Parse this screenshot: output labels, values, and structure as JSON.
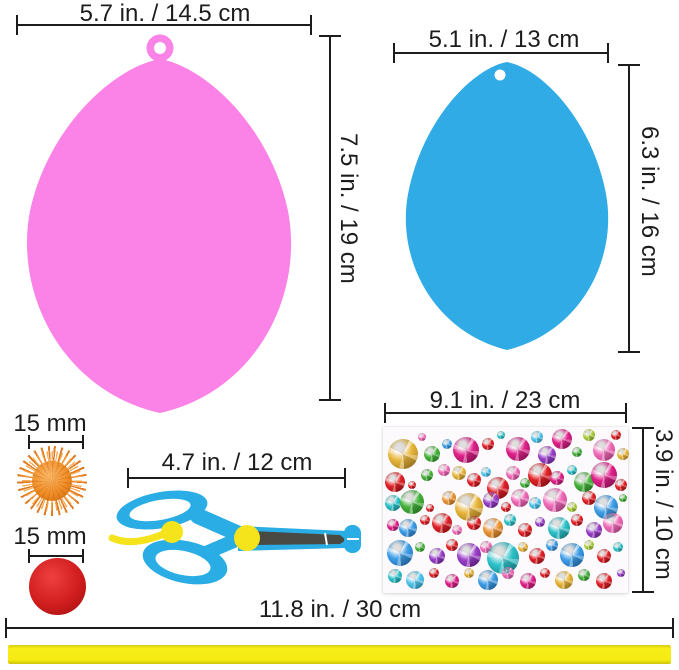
{
  "colors": {
    "dimension_line": "#1c1c1c",
    "pink_egg": "#fb82e6",
    "blue_egg": "#31abe6",
    "scissors_blue": "#29ade4",
    "scissors_yellow": "#f5e41c",
    "blade_gray": "#4a4a45",
    "ribbon_yellow": "#f5eb14",
    "pompom_orange": "#ef8c25",
    "pompom_red": "#d01d1d"
  },
  "pink_egg": {
    "width_label": "5.7 in. / 14.5 cm",
    "height_label": "7.5 in. / 19 cm"
  },
  "blue_egg": {
    "width_label": "5.1 in. / 13 cm",
    "height_label": "6.3 in. / 16 cm"
  },
  "orange_pompom": {
    "size_label": "15 mm"
  },
  "red_pompom": {
    "size_label": "15 mm"
  },
  "scissors": {
    "length_label": "4.7 in. / 12 cm"
  },
  "sticker_sheet": {
    "width_label": "9.1 in. / 23 cm",
    "height_label": "3.9 in. / 10 cm",
    "palette": {
      "red": [
        "#e02127",
        "#8f0d12"
      ],
      "magenta": [
        "#e0218a",
        "#8f1158"
      ],
      "pink": [
        "#f06cb8",
        "#b03a80"
      ],
      "gold": [
        "#e8b63a",
        "#a1761a"
      ],
      "orange": [
        "#eb9434",
        "#a65e14"
      ],
      "green": [
        "#46b13c",
        "#1f7a1a"
      ],
      "lime": [
        "#aace3a",
        "#6f8f18"
      ],
      "teal": [
        "#2ec2c9",
        "#127f86"
      ],
      "blue": [
        "#3e9fe6",
        "#1a5fa8"
      ],
      "cyan": [
        "#52c3ea",
        "#1f85ad"
      ],
      "purple": [
        "#9a3fc9",
        "#5e1a85"
      ]
    },
    "gems": [
      [
        8,
        16,
        15,
        "gold"
      ],
      [
        16,
        6,
        4,
        "pink"
      ],
      [
        20,
        16,
        8,
        "green"
      ],
      [
        26,
        10,
        5,
        "blue"
      ],
      [
        34,
        14,
        13,
        "magenta"
      ],
      [
        43,
        10,
        6,
        "red"
      ],
      [
        48,
        5,
        4,
        "teal"
      ],
      [
        55,
        13,
        12,
        "magenta"
      ],
      [
        63,
        6,
        6,
        "cyan"
      ],
      [
        67,
        17,
        9,
        "purple"
      ],
      [
        73,
        7,
        10,
        "magenta"
      ],
      [
        79,
        15,
        5,
        "green"
      ],
      [
        84,
        5,
        6,
        "lime"
      ],
      [
        90,
        14,
        11,
        "pink"
      ],
      [
        95,
        5,
        5,
        "red"
      ],
      [
        98,
        16,
        6,
        "gold"
      ],
      [
        5,
        33,
        10,
        "red"
      ],
      [
        12,
        35,
        4,
        "red"
      ],
      [
        18,
        29,
        6,
        "green"
      ],
      [
        25,
        26,
        6,
        "pink"
      ],
      [
        31,
        28,
        7,
        "gold"
      ],
      [
        37,
        32,
        7,
        "red"
      ],
      [
        42,
        27,
        5,
        "cyan"
      ],
      [
        47,
        37,
        11,
        "red"
      ],
      [
        53,
        28,
        7,
        "pink"
      ],
      [
        58,
        34,
        5,
        "green"
      ],
      [
        64,
        29,
        12,
        "red"
      ],
      [
        71,
        31,
        7,
        "magenta"
      ],
      [
        77,
        26,
        5,
        "teal"
      ],
      [
        82,
        33,
        10,
        "green"
      ],
      [
        90,
        29,
        13,
        "magenta"
      ],
      [
        97,
        35,
        6,
        "red"
      ],
      [
        4,
        46,
        8,
        "teal"
      ],
      [
        12,
        45,
        12,
        "green"
      ],
      [
        19,
        49,
        4,
        "red"
      ],
      [
        27,
        43,
        7,
        "orange"
      ],
      [
        35,
        48,
        14,
        "gold"
      ],
      [
        44,
        44,
        8,
        "purple"
      ],
      [
        50,
        48,
        5,
        "red"
      ],
      [
        56,
        43,
        9,
        "pink"
      ],
      [
        62,
        46,
        6,
        "cyan"
      ],
      [
        70,
        44,
        12,
        "pink"
      ],
      [
        77,
        48,
        5,
        "lime"
      ],
      [
        84,
        43,
        7,
        "red"
      ],
      [
        91,
        48,
        12,
        "blue"
      ],
      [
        98,
        43,
        4,
        "green"
      ],
      [
        4,
        59,
        6,
        "magenta"
      ],
      [
        10,
        61,
        9,
        "blue"
      ],
      [
        17,
        56,
        5,
        "red"
      ],
      [
        24,
        58,
        10,
        "red"
      ],
      [
        30,
        62,
        5,
        "pink"
      ],
      [
        37,
        58,
        7,
        "red"
      ],
      [
        45,
        61,
        10,
        "orange"
      ],
      [
        52,
        56,
        6,
        "teal"
      ],
      [
        58,
        62,
        7,
        "red"
      ],
      [
        64,
        57,
        5,
        "purple"
      ],
      [
        72,
        61,
        11,
        "teal"
      ],
      [
        79,
        56,
        6,
        "red"
      ],
      [
        86,
        62,
        8,
        "purple"
      ],
      [
        94,
        58,
        10,
        "pink"
      ],
      [
        7,
        76,
        13,
        "blue"
      ],
      [
        15,
        72,
        5,
        "green"
      ],
      [
        22,
        78,
        8,
        "purple"
      ],
      [
        28,
        71,
        6,
        "red"
      ],
      [
        35,
        77,
        12,
        "purple"
      ],
      [
        42,
        72,
        6,
        "pink"
      ],
      [
        49,
        79,
        16,
        "teal"
      ],
      [
        57,
        72,
        5,
        "gold"
      ],
      [
        63,
        78,
        8,
        "red"
      ],
      [
        69,
        71,
        6,
        "blue"
      ],
      [
        77,
        77,
        12,
        "blue"
      ],
      [
        84,
        71,
        5,
        "lime"
      ],
      [
        90,
        78,
        7,
        "red"
      ],
      [
        96,
        72,
        5,
        "teal"
      ],
      [
        5,
        90,
        7,
        "teal"
      ],
      [
        13,
        92,
        9,
        "cyan"
      ],
      [
        21,
        88,
        5,
        "red"
      ],
      [
        28,
        93,
        7,
        "magenta"
      ],
      [
        35,
        88,
        5,
        "gold"
      ],
      [
        43,
        92,
        10,
        "blue"
      ],
      [
        51,
        88,
        6,
        "pink"
      ],
      [
        59,
        93,
        8,
        "magenta"
      ],
      [
        66,
        88,
        5,
        "red"
      ],
      [
        74,
        92,
        9,
        "gold"
      ],
      [
        82,
        89,
        6,
        "green"
      ],
      [
        90,
        93,
        8,
        "red"
      ],
      [
        97,
        88,
        4,
        "purple"
      ]
    ]
  },
  "ribbon": {
    "length_label": "11.8 in. / 30 cm"
  }
}
